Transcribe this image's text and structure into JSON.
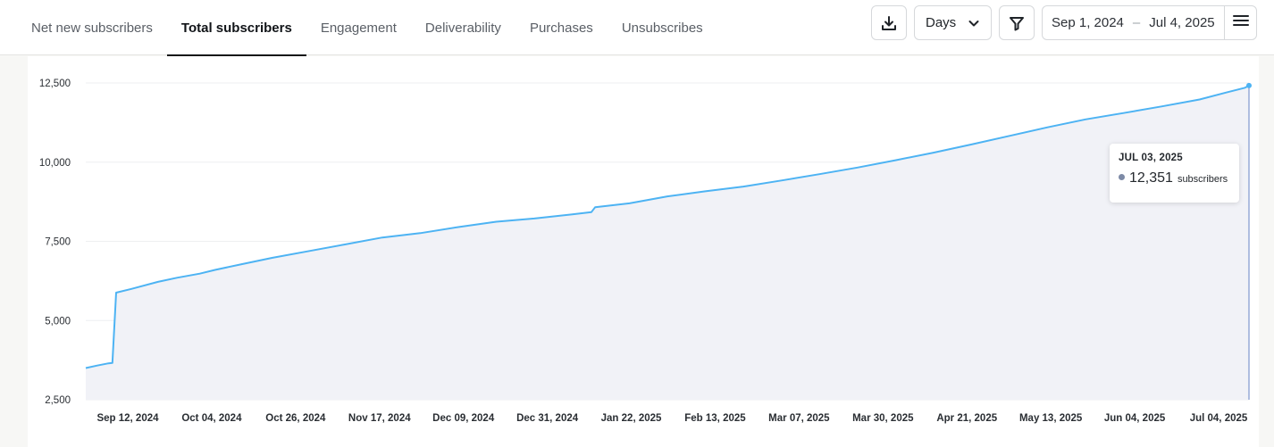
{
  "tabs": [
    {
      "label": "Net new subscribers",
      "active": false
    },
    {
      "label": "Total subscribers",
      "active": true
    },
    {
      "label": "Engagement",
      "active": false
    },
    {
      "label": "Deliverability",
      "active": false
    },
    {
      "label": "Purchases",
      "active": false
    },
    {
      "label": "Unsubscribes",
      "active": false
    }
  ],
  "toolbar": {
    "download_icon": "download-icon",
    "granularity": "Days",
    "filter_icon": "filter-icon",
    "date_start": "Sep 1, 2024",
    "date_separator": "–",
    "date_end": "Jul 4, 2025",
    "menu_icon": "menu-icon"
  },
  "tooltip": {
    "date": "JUL 03, 2025",
    "value": "12,351",
    "unit": "subscribers"
  },
  "colors": {
    "line": "#4db3f3",
    "area": "#f1f2f7",
    "cursor": "#7f97cf"
  },
  "chart_data": {
    "type": "area",
    "title": "",
    "xlabel": "",
    "ylabel": "",
    "ylim": [
      2500,
      12500
    ],
    "xlim": [
      "2024-09-01",
      "2025-07-04"
    ],
    "yticks": [
      2500,
      5000,
      7500,
      10000,
      12500
    ],
    "ytick_labels": [
      "2,500",
      "5,000",
      "7,500",
      "10,000",
      "12,500"
    ],
    "xtick_labels": [
      "Sep 12, 2024",
      "Oct 04, 2024",
      "Oct 26, 2024",
      "Nov 17, 2024",
      "Dec 09, 2024",
      "Dec 31, 2024",
      "Jan 22, 2025",
      "Feb 13, 2025",
      "Mar 07, 2025",
      "Mar 30, 2025",
      "Apr 21, 2025",
      "May 13, 2025",
      "Jun 04, 2025",
      "Jul 04, 2025"
    ],
    "grid": true,
    "series": [
      {
        "x": [
          "2024-09-01",
          "2024-09-04",
          "2024-09-07",
          "2024-09-08",
          "2024-09-09",
          "2024-09-13",
          "2024-09-20",
          "2024-09-25",
          "2024-10-01",
          "2024-10-05",
          "2024-10-12",
          "2024-10-20",
          "2024-10-30",
          "2024-11-08",
          "2024-11-18",
          "2024-11-28",
          "2024-12-08",
          "2024-12-18",
          "2024-12-28",
          "2025-01-07",
          "2025-01-12",
          "2025-01-13",
          "2025-01-22",
          "2025-02-01",
          "2025-02-11",
          "2025-02-21",
          "2025-03-03",
          "2025-03-13",
          "2025-03-23",
          "2025-04-02",
          "2025-04-12",
          "2025-04-22",
          "2025-05-02",
          "2025-05-12",
          "2025-05-22",
          "2025-06-01",
          "2025-06-11",
          "2025-06-21",
          "2025-06-28",
          "2025-07-03",
          "2025-07-04"
        ],
        "y": [
          3500,
          3580,
          3650,
          3660,
          5880,
          6000,
          6220,
          6350,
          6480,
          6600,
          6780,
          6980,
          7200,
          7400,
          7620,
          7760,
          7950,
          8120,
          8220,
          8350,
          8420,
          8580,
          8700,
          8920,
          9080,
          9230,
          9420,
          9620,
          9830,
          10060,
          10300,
          10560,
          10830,
          11100,
          11350,
          11550,
          11760,
          11980,
          12200,
          12351,
          12420
        ]
      }
    ]
  }
}
